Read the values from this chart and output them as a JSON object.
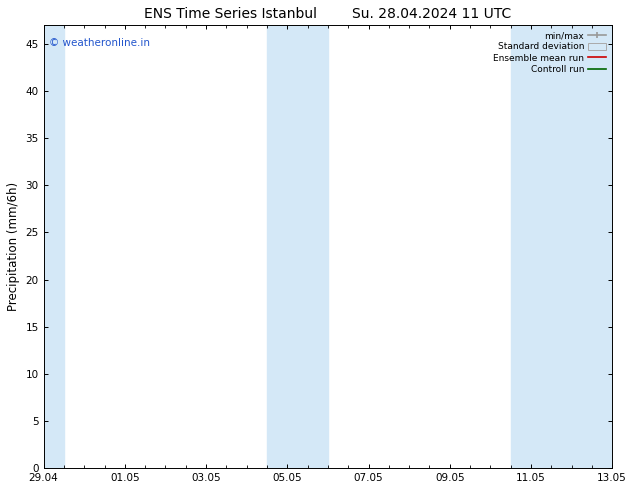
{
  "title_left": "ENS Time Series Istanbul",
  "title_right": "Su. 28.04.2024 11 UTC",
  "ylabel": "Precipitation (mm/6h)",
  "ylim": [
    0,
    47
  ],
  "yticks": [
    0,
    5,
    10,
    15,
    20,
    25,
    30,
    35,
    40,
    45
  ],
  "xlim_start": 0,
  "xlim_end": 336,
  "xtick_labels": [
    "29.04",
    "01.05",
    "03.05",
    "05.05",
    "07.05",
    "09.05",
    "11.05",
    "13.05"
  ],
  "xtick_positions": [
    0,
    48,
    96,
    144,
    192,
    240,
    288,
    336
  ],
  "shaded_bands": [
    {
      "xstart": 0,
      "xend": 12
    },
    {
      "xstart": 132,
      "xend": 168
    },
    {
      "xstart": 276,
      "xend": 336
    }
  ],
  "shade_color": "#d4e8f7",
  "background_color": "#ffffff",
  "watermark_text": "© weatheronline.in",
  "watermark_color": "#2255cc",
  "title_fontsize": 10,
  "tick_fontsize": 7.5,
  "label_fontsize": 8.5
}
